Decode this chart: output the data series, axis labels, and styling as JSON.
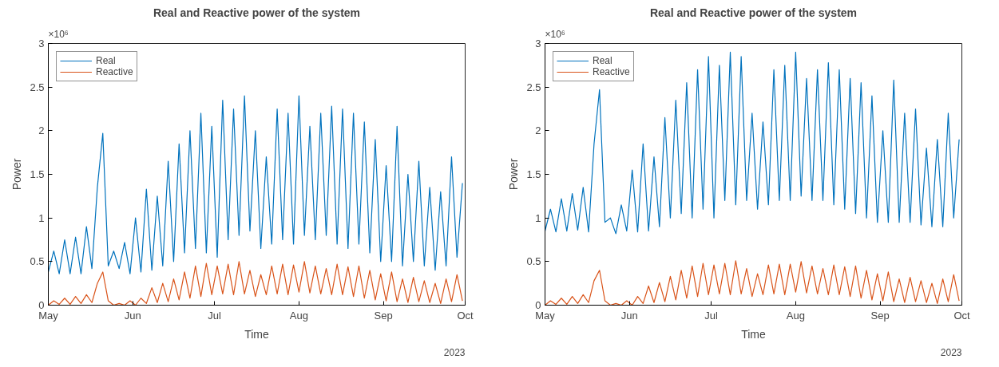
{
  "chart_data": [
    {
      "type": "line",
      "title": "Real and Reactive power of the system",
      "xlabel": "Time",
      "ylabel": "Power",
      "annotations": [
        "×10⁶",
        "2023"
      ],
      "legend": "top left",
      "grid": false,
      "xlim": [
        "2023-05-01",
        "2023-10-01"
      ],
      "xticks": [
        {
          "value": "2023-05-01",
          "label": "May"
        },
        {
          "value": "2023-06-01",
          "label": "Jun"
        },
        {
          "value": "2023-07-01",
          "label": "Jul"
        },
        {
          "value": "2023-08-01",
          "label": "Aug"
        },
        {
          "value": "2023-09-01",
          "label": "Sep"
        },
        {
          "value": "2023-10-01",
          "label": "Oct"
        }
      ],
      "ylim": [
        0,
        3
      ],
      "yticks": [
        0,
        0.5,
        1,
        1.5,
        2,
        2.5,
        3
      ],
      "x": [
        "2023-05-01",
        "2023-05-03",
        "2023-05-05",
        "2023-05-07",
        "2023-05-09",
        "2023-05-11",
        "2023-05-13",
        "2023-05-15",
        "2023-05-17",
        "2023-05-19",
        "2023-05-21",
        "2023-05-23",
        "2023-05-25",
        "2023-05-27",
        "2023-05-29",
        "2023-05-31",
        "2023-06-02",
        "2023-06-04",
        "2023-06-06",
        "2023-06-08",
        "2023-06-10",
        "2023-06-12",
        "2023-06-14",
        "2023-06-16",
        "2023-06-18",
        "2023-06-20",
        "2023-06-22",
        "2023-06-24",
        "2023-06-26",
        "2023-06-28",
        "2023-06-30",
        "2023-07-02",
        "2023-07-04",
        "2023-07-06",
        "2023-07-08",
        "2023-07-10",
        "2023-07-12",
        "2023-07-14",
        "2023-07-16",
        "2023-07-18",
        "2023-07-20",
        "2023-07-22",
        "2023-07-24",
        "2023-07-26",
        "2023-07-28",
        "2023-07-30",
        "2023-08-01",
        "2023-08-03",
        "2023-08-05",
        "2023-08-07",
        "2023-08-09",
        "2023-08-11",
        "2023-08-13",
        "2023-08-15",
        "2023-08-17",
        "2023-08-19",
        "2023-08-21",
        "2023-08-23",
        "2023-08-25",
        "2023-08-27",
        "2023-08-29",
        "2023-08-31",
        "2023-09-02",
        "2023-09-04",
        "2023-09-06",
        "2023-09-08",
        "2023-09-10",
        "2023-09-12",
        "2023-09-14",
        "2023-09-16",
        "2023-09-18",
        "2023-09-20",
        "2023-09-22",
        "2023-09-24",
        "2023-09-26",
        "2023-09-28",
        "2023-09-30"
      ],
      "series": [
        {
          "name": "Real",
          "color": "#0072bd",
          "values": [
            0.38,
            0.62,
            0.36,
            0.75,
            0.36,
            0.78,
            0.36,
            0.9,
            0.42,
            1.35,
            1.97,
            0.45,
            0.62,
            0.42,
            0.72,
            0.36,
            1.0,
            0.38,
            1.33,
            0.4,
            1.25,
            0.45,
            1.65,
            0.5,
            1.85,
            0.6,
            2.0,
            0.65,
            2.2,
            0.6,
            2.05,
            0.55,
            2.35,
            0.75,
            2.25,
            0.8,
            2.4,
            0.85,
            2.0,
            0.65,
            1.7,
            0.7,
            2.25,
            0.75,
            2.2,
            0.7,
            2.4,
            0.8,
            2.05,
            0.75,
            2.2,
            0.8,
            2.28,
            0.7,
            2.25,
            0.65,
            2.2,
            0.7,
            2.1,
            0.6,
            1.9,
            0.5,
            1.6,
            0.5,
            2.05,
            0.45,
            1.5,
            0.5,
            1.65,
            0.45,
            1.35,
            0.4,
            1.3,
            0.45,
            1.7,
            0.55,
            1.4
          ]
        },
        {
          "name": "Reactive",
          "color": "#d95319",
          "values": [
            0.0,
            0.05,
            0.01,
            0.08,
            0.01,
            0.1,
            0.02,
            0.12,
            0.03,
            0.25,
            0.38,
            0.05,
            0.0,
            0.02,
            0.0,
            0.05,
            0.0,
            0.08,
            0.02,
            0.2,
            0.03,
            0.25,
            0.04,
            0.3,
            0.06,
            0.38,
            0.08,
            0.45,
            0.1,
            0.48,
            0.12,
            0.45,
            0.13,
            0.47,
            0.12,
            0.5,
            0.13,
            0.4,
            0.1,
            0.35,
            0.12,
            0.45,
            0.13,
            0.47,
            0.12,
            0.46,
            0.15,
            0.5,
            0.14,
            0.45,
            0.13,
            0.42,
            0.12,
            0.47,
            0.12,
            0.44,
            0.1,
            0.45,
            0.08,
            0.4,
            0.06,
            0.36,
            0.05,
            0.38,
            0.04,
            0.3,
            0.03,
            0.32,
            0.04,
            0.28,
            0.03,
            0.25,
            0.02,
            0.3,
            0.04,
            0.35,
            0.05
          ]
        }
      ]
    },
    {
      "type": "line",
      "title": "Real and Reactive power of the system",
      "xlabel": "Time",
      "ylabel": "Power",
      "annotations": [
        "×10⁶",
        "2023"
      ],
      "legend": "top left",
      "grid": false,
      "xlim": [
        "2023-05-01",
        "2023-10-01"
      ],
      "xticks": [
        {
          "value": "2023-05-01",
          "label": "May"
        },
        {
          "value": "2023-06-01",
          "label": "Jun"
        },
        {
          "value": "2023-07-01",
          "label": "Jul"
        },
        {
          "value": "2023-08-01",
          "label": "Aug"
        },
        {
          "value": "2023-09-01",
          "label": "Sep"
        },
        {
          "value": "2023-10-01",
          "label": "Oct"
        }
      ],
      "ylim": [
        0,
        3
      ],
      "yticks": [
        0,
        0.5,
        1,
        1.5,
        2,
        2.5,
        3
      ],
      "x": [
        "2023-05-01",
        "2023-05-03",
        "2023-05-05",
        "2023-05-07",
        "2023-05-09",
        "2023-05-11",
        "2023-05-13",
        "2023-05-15",
        "2023-05-17",
        "2023-05-19",
        "2023-05-21",
        "2023-05-23",
        "2023-05-25",
        "2023-05-27",
        "2023-05-29",
        "2023-05-31",
        "2023-06-02",
        "2023-06-04",
        "2023-06-06",
        "2023-06-08",
        "2023-06-10",
        "2023-06-12",
        "2023-06-14",
        "2023-06-16",
        "2023-06-18",
        "2023-06-20",
        "2023-06-22",
        "2023-06-24",
        "2023-06-26",
        "2023-06-28",
        "2023-06-30",
        "2023-07-02",
        "2023-07-04",
        "2023-07-06",
        "2023-07-08",
        "2023-07-10",
        "2023-07-12",
        "2023-07-14",
        "2023-07-16",
        "2023-07-18",
        "2023-07-20",
        "2023-07-22",
        "2023-07-24",
        "2023-07-26",
        "2023-07-28",
        "2023-07-30",
        "2023-08-01",
        "2023-08-03",
        "2023-08-05",
        "2023-08-07",
        "2023-08-09",
        "2023-08-11",
        "2023-08-13",
        "2023-08-15",
        "2023-08-17",
        "2023-08-19",
        "2023-08-21",
        "2023-08-23",
        "2023-08-25",
        "2023-08-27",
        "2023-08-29",
        "2023-08-31",
        "2023-09-02",
        "2023-09-04",
        "2023-09-06",
        "2023-09-08",
        "2023-09-10",
        "2023-09-12",
        "2023-09-14",
        "2023-09-16",
        "2023-09-18",
        "2023-09-20",
        "2023-09-22",
        "2023-09-24",
        "2023-09-26",
        "2023-09-28",
        "2023-09-30"
      ],
      "series": [
        {
          "name": "Real",
          "color": "#0072bd",
          "values": [
            0.85,
            1.1,
            0.84,
            1.22,
            0.85,
            1.28,
            0.86,
            1.35,
            0.84,
            1.85,
            2.47,
            0.95,
            1.0,
            0.82,
            1.15,
            0.85,
            1.55,
            0.84,
            1.85,
            0.85,
            1.7,
            0.9,
            2.15,
            1.0,
            2.35,
            1.05,
            2.55,
            1.0,
            2.7,
            1.1,
            2.85,
            1.0,
            2.75,
            1.2,
            2.9,
            1.15,
            2.85,
            1.2,
            2.2,
            1.1,
            2.1,
            1.15,
            2.7,
            1.2,
            2.75,
            1.2,
            2.9,
            1.25,
            2.6,
            1.2,
            2.7,
            1.2,
            2.78,
            1.15,
            2.7,
            1.1,
            2.6,
            1.05,
            2.55,
            1.0,
            2.4,
            0.95,
            2.0,
            0.95,
            2.58,
            0.95,
            2.2,
            0.95,
            2.25,
            0.92,
            1.8,
            0.9,
            1.9,
            0.9,
            2.2,
            1.0,
            1.9
          ]
        },
        {
          "name": "Reactive",
          "color": "#d95319",
          "values": [
            0.0,
            0.05,
            0.01,
            0.08,
            0.01,
            0.1,
            0.02,
            0.12,
            0.03,
            0.28,
            0.4,
            0.05,
            0.0,
            0.02,
            0.0,
            0.05,
            0.0,
            0.1,
            0.02,
            0.22,
            0.03,
            0.26,
            0.04,
            0.33,
            0.06,
            0.4,
            0.08,
            0.45,
            0.1,
            0.48,
            0.12,
            0.46,
            0.13,
            0.48,
            0.12,
            0.51,
            0.13,
            0.42,
            0.1,
            0.36,
            0.12,
            0.46,
            0.13,
            0.47,
            0.12,
            0.47,
            0.15,
            0.5,
            0.14,
            0.45,
            0.13,
            0.42,
            0.12,
            0.46,
            0.12,
            0.44,
            0.1,
            0.45,
            0.08,
            0.4,
            0.06,
            0.36,
            0.05,
            0.38,
            0.04,
            0.3,
            0.03,
            0.32,
            0.04,
            0.28,
            0.03,
            0.25,
            0.02,
            0.3,
            0.04,
            0.35,
            0.05
          ]
        }
      ]
    }
  ]
}
